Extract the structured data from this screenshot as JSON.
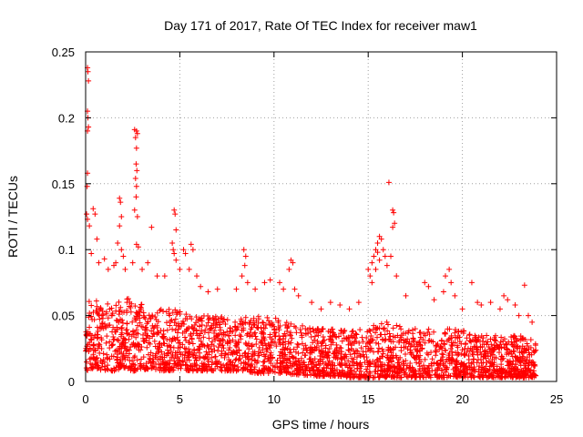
{
  "chart_data": {
    "type": "scatter",
    "title": "Day 171 of 2017, Rate Of TEC Index for receiver maw1",
    "xlabel": "GPS time / hours",
    "ylabel": "ROTI / TECUs",
    "xlim": [
      0,
      25
    ],
    "ylim": [
      0,
      0.25
    ],
    "x_ticks": [
      "0",
      "5",
      "10",
      "15",
      "20",
      "25"
    ],
    "y_ticks": [
      "0",
      "0.05",
      "0.1",
      "0.15",
      "0.2",
      "0.25"
    ],
    "grid": true,
    "marker": "+",
    "color": "#ff0000",
    "envelope": {
      "x": [
        0.0,
        0.5,
        1.0,
        1.5,
        2.0,
        2.5,
        3.0,
        3.5,
        4.0,
        4.5,
        5.0,
        5.5,
        6.0,
        6.5,
        7.0,
        7.5,
        8.0,
        8.5,
        9.0,
        9.5,
        10.0,
        10.5,
        11.0,
        11.5,
        12.0,
        12.5,
        13.0,
        13.5,
        14.0,
        14.5,
        15.0,
        15.5,
        16.0,
        16.5,
        17.0,
        17.5,
        18.0,
        18.5,
        19.0,
        19.5,
        20.0,
        20.5,
        21.0,
        21.5,
        22.0,
        22.5,
        23.0,
        23.5,
        23.9
      ],
      "low": [
        0.008,
        0.01,
        0.008,
        0.008,
        0.01,
        0.008,
        0.008,
        0.01,
        0.008,
        0.008,
        0.01,
        0.008,
        0.008,
        0.008,
        0.008,
        0.008,
        0.008,
        0.008,
        0.006,
        0.006,
        0.006,
        0.006,
        0.005,
        0.005,
        0.004,
        0.004,
        0.004,
        0.004,
        0.003,
        0.003,
        0.003,
        0.003,
        0.003,
        0.003,
        0.003,
        0.003,
        0.003,
        0.003,
        0.003,
        0.003,
        0.003,
        0.003,
        0.003,
        0.003,
        0.003,
        0.003,
        0.003,
        0.003,
        0.003
      ],
      "high": [
        0.06,
        0.065,
        0.06,
        0.06,
        0.065,
        0.065,
        0.06,
        0.055,
        0.055,
        0.055,
        0.055,
        0.05,
        0.05,
        0.05,
        0.05,
        0.05,
        0.05,
        0.05,
        0.05,
        0.05,
        0.05,
        0.045,
        0.045,
        0.045,
        0.04,
        0.04,
        0.04,
        0.04,
        0.04,
        0.04,
        0.04,
        0.045,
        0.045,
        0.045,
        0.04,
        0.04,
        0.04,
        0.04,
        0.04,
        0.04,
        0.04,
        0.035,
        0.035,
        0.035,
        0.035,
        0.035,
        0.035,
        0.035,
        0.03
      ]
    },
    "outliers": [
      {
        "x": 0.1,
        "y": 0.238
      },
      {
        "x": 0.12,
        "y": 0.235
      },
      {
        "x": 0.15,
        "y": 0.228
      },
      {
        "x": 0.1,
        "y": 0.205
      },
      {
        "x": 0.12,
        "y": 0.2
      },
      {
        "x": 0.15,
        "y": 0.193
      },
      {
        "x": 0.1,
        "y": 0.19
      },
      {
        "x": 0.1,
        "y": 0.158
      },
      {
        "x": 0.08,
        "y": 0.148
      },
      {
        "x": 0.05,
        "y": 0.127
      },
      {
        "x": 0.1,
        "y": 0.123
      },
      {
        "x": 0.2,
        "y": 0.118
      },
      {
        "x": 0.4,
        "y": 0.131
      },
      {
        "x": 0.5,
        "y": 0.127
      },
      {
        "x": 0.6,
        "y": 0.108
      },
      {
        "x": 0.3,
        "y": 0.097
      },
      {
        "x": 0.7,
        "y": 0.09
      },
      {
        "x": 1.0,
        "y": 0.093
      },
      {
        "x": 1.2,
        "y": 0.085
      },
      {
        "x": 1.5,
        "y": 0.088
      },
      {
        "x": 1.6,
        "y": 0.09
      },
      {
        "x": 1.8,
        "y": 0.139
      },
      {
        "x": 1.85,
        "y": 0.136
      },
      {
        "x": 1.8,
        "y": 0.118
      },
      {
        "x": 1.9,
        "y": 0.125
      },
      {
        "x": 1.7,
        "y": 0.105
      },
      {
        "x": 1.9,
        "y": 0.1
      },
      {
        "x": 2.0,
        "y": 0.095
      },
      {
        "x": 2.1,
        "y": 0.085
      },
      {
        "x": 2.6,
        "y": 0.191
      },
      {
        "x": 2.7,
        "y": 0.19
      },
      {
        "x": 2.75,
        "y": 0.188
      },
      {
        "x": 2.65,
        "y": 0.185
      },
      {
        "x": 2.7,
        "y": 0.177
      },
      {
        "x": 2.68,
        "y": 0.165
      },
      {
        "x": 2.72,
        "y": 0.16
      },
      {
        "x": 2.65,
        "y": 0.154
      },
      {
        "x": 2.7,
        "y": 0.148
      },
      {
        "x": 2.68,
        "y": 0.14
      },
      {
        "x": 2.6,
        "y": 0.13
      },
      {
        "x": 2.75,
        "y": 0.125
      },
      {
        "x": 2.7,
        "y": 0.104
      },
      {
        "x": 2.8,
        "y": 0.102
      },
      {
        "x": 2.5,
        "y": 0.09
      },
      {
        "x": 3.0,
        "y": 0.085
      },
      {
        "x": 3.5,
        "y": 0.117
      },
      {
        "x": 3.3,
        "y": 0.09
      },
      {
        "x": 3.8,
        "y": 0.08
      },
      {
        "x": 4.2,
        "y": 0.08
      },
      {
        "x": 4.7,
        "y": 0.13
      },
      {
        "x": 4.75,
        "y": 0.127
      },
      {
        "x": 4.8,
        "y": 0.115
      },
      {
        "x": 4.6,
        "y": 0.105
      },
      {
        "x": 4.65,
        "y": 0.1
      },
      {
        "x": 4.7,
        "y": 0.097
      },
      {
        "x": 4.8,
        "y": 0.092
      },
      {
        "x": 5.0,
        "y": 0.085
      },
      {
        "x": 5.2,
        "y": 0.1
      },
      {
        "x": 5.3,
        "y": 0.097
      },
      {
        "x": 5.6,
        "y": 0.104
      },
      {
        "x": 5.7,
        "y": 0.1
      },
      {
        "x": 5.5,
        "y": 0.085
      },
      {
        "x": 5.9,
        "y": 0.08
      },
      {
        "x": 6.1,
        "y": 0.072
      },
      {
        "x": 6.5,
        "y": 0.068
      },
      {
        "x": 7.0,
        "y": 0.07
      },
      {
        "x": 8.4,
        "y": 0.1
      },
      {
        "x": 8.5,
        "y": 0.095
      },
      {
        "x": 8.45,
        "y": 0.088
      },
      {
        "x": 8.3,
        "y": 0.08
      },
      {
        "x": 8.6,
        "y": 0.075
      },
      {
        "x": 8.0,
        "y": 0.07
      },
      {
        "x": 9.0,
        "y": 0.07
      },
      {
        "x": 9.5,
        "y": 0.075
      },
      {
        "x": 9.8,
        "y": 0.077
      },
      {
        "x": 10.3,
        "y": 0.075
      },
      {
        "x": 10.5,
        "y": 0.07
      },
      {
        "x": 10.9,
        "y": 0.092
      },
      {
        "x": 11.0,
        "y": 0.09
      },
      {
        "x": 10.8,
        "y": 0.085
      },
      {
        "x": 11.1,
        "y": 0.07
      },
      {
        "x": 11.3,
        "y": 0.065
      },
      {
        "x": 12.0,
        "y": 0.06
      },
      {
        "x": 12.5,
        "y": 0.055
      },
      {
        "x": 13.0,
        "y": 0.06
      },
      {
        "x": 13.5,
        "y": 0.058
      },
      {
        "x": 14.0,
        "y": 0.055
      },
      {
        "x": 14.5,
        "y": 0.06
      },
      {
        "x": 15.0,
        "y": 0.085
      },
      {
        "x": 15.1,
        "y": 0.08
      },
      {
        "x": 15.2,
        "y": 0.09
      },
      {
        "x": 15.3,
        "y": 0.095
      },
      {
        "x": 15.4,
        "y": 0.1
      },
      {
        "x": 15.5,
        "y": 0.105
      },
      {
        "x": 15.6,
        "y": 0.11
      },
      {
        "x": 15.7,
        "y": 0.108
      },
      {
        "x": 15.5,
        "y": 0.098
      },
      {
        "x": 15.6,
        "y": 0.092
      },
      {
        "x": 15.8,
        "y": 0.1
      },
      {
        "x": 15.9,
        "y": 0.095
      },
      {
        "x": 15.4,
        "y": 0.085
      },
      {
        "x": 15.2,
        "y": 0.075
      },
      {
        "x": 16.1,
        "y": 0.151
      },
      {
        "x": 16.3,
        "y": 0.13
      },
      {
        "x": 16.35,
        "y": 0.128
      },
      {
        "x": 16.4,
        "y": 0.12
      },
      {
        "x": 16.3,
        "y": 0.117
      },
      {
        "x": 16.2,
        "y": 0.095
      },
      {
        "x": 16.0,
        "y": 0.088
      },
      {
        "x": 16.5,
        "y": 0.08
      },
      {
        "x": 17.0,
        "y": 0.065
      },
      {
        "x": 18.0,
        "y": 0.075
      },
      {
        "x": 18.2,
        "y": 0.072
      },
      {
        "x": 18.5,
        "y": 0.062
      },
      {
        "x": 19.1,
        "y": 0.08
      },
      {
        "x": 19.3,
        "y": 0.085
      },
      {
        "x": 19.4,
        "y": 0.075
      },
      {
        "x": 19.0,
        "y": 0.068
      },
      {
        "x": 19.6,
        "y": 0.065
      },
      {
        "x": 20.0,
        "y": 0.055
      },
      {
        "x": 20.5,
        "y": 0.075
      },
      {
        "x": 20.8,
        "y": 0.06
      },
      {
        "x": 21.0,
        "y": 0.058
      },
      {
        "x": 21.5,
        "y": 0.06
      },
      {
        "x": 22.0,
        "y": 0.055
      },
      {
        "x": 22.2,
        "y": 0.065
      },
      {
        "x": 22.4,
        "y": 0.062
      },
      {
        "x": 22.8,
        "y": 0.058
      },
      {
        "x": 23.0,
        "y": 0.05
      },
      {
        "x": 23.3,
        "y": 0.073
      },
      {
        "x": 23.5,
        "y": 0.05
      },
      {
        "x": 23.7,
        "y": 0.045
      }
    ]
  }
}
